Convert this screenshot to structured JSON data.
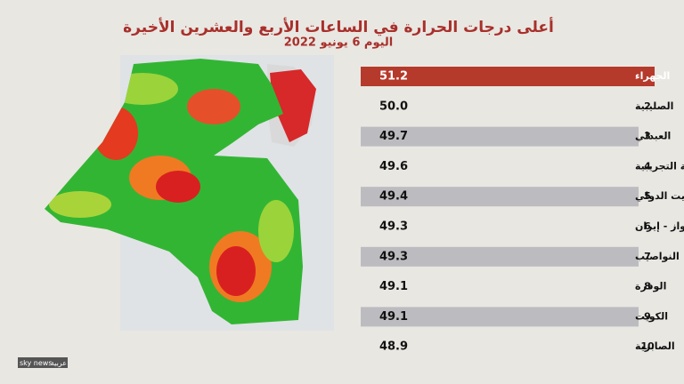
{
  "header": {
    "title": "أعلى درجات الحرارة في الساعات الأربع والعشرين الأخيرة",
    "subtitle": "اليوم 6 يونيو 2022"
  },
  "table": {
    "rows": [
      {
        "name": "الجهراء",
        "value": "51.2"
      },
      {
        "rank": "2",
        "name": "الصليبية",
        "value": "50.0"
      },
      {
        "rank": "3",
        "name": "العبدلي",
        "value": "49.7"
      },
      {
        "rank": "4",
        "name": "المزرعة التجريبية",
        "value": "49.6"
      },
      {
        "rank": "5",
        "name": "مطار الكويت الدولي",
        "value": "49.4"
      },
      {
        "rank": "6",
        "name": "الأهواز  - إيران",
        "value": "49.3"
      },
      {
        "rank": "7",
        "name": "النواصيب",
        "value": "49.3"
      },
      {
        "rank": "8",
        "name": "الوفرة",
        "value": "49.1"
      },
      {
        "rank": "9",
        "name": "الكويت",
        "value": "49.1"
      },
      {
        "rank": "10",
        "name": "الصابرية",
        "value": "48.9"
      }
    ]
  },
  "logo": {
    "brand": "sky news",
    "script": "عربية"
  }
}
